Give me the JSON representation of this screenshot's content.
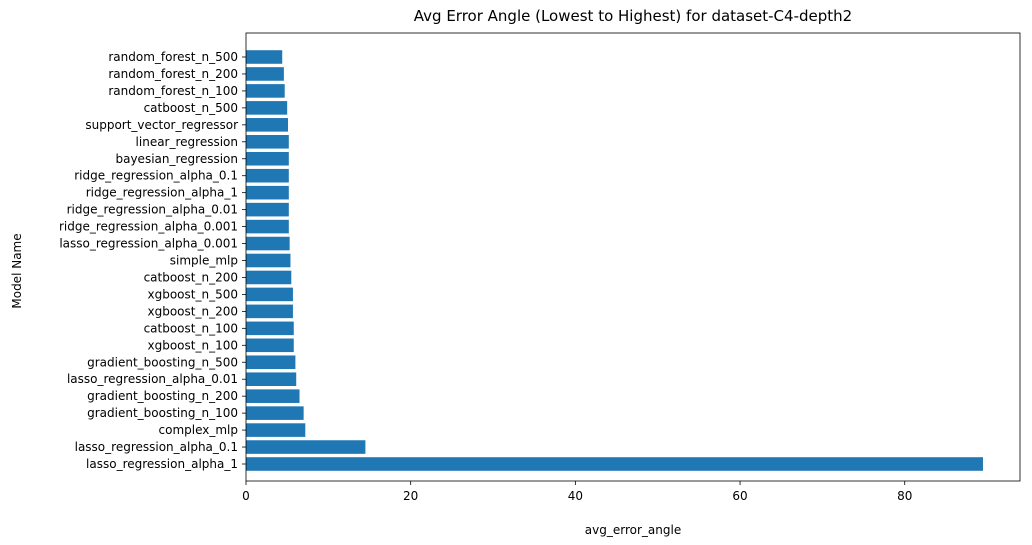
{
  "chart_data": {
    "type": "bar",
    "orientation": "horizontal",
    "title": "Avg Error Angle (Lowest to Highest) for dataset-C4-depth2",
    "xlabel": "avg_error_angle",
    "ylabel": "Model Name",
    "xlim": [
      0,
      94
    ],
    "xticks": [
      0,
      20,
      40,
      60,
      80
    ],
    "grid": false,
    "bar_color": "#1f77b4",
    "categories": [
      "random_forest_n_500",
      "random_forest_n_200",
      "random_forest_n_100",
      "catboost_n_500",
      "support_vector_regressor",
      "linear_regression",
      "bayesian_regression",
      "ridge_regression_alpha_0.1",
      "ridge_regression_alpha_1",
      "ridge_regression_alpha_0.01",
      "ridge_regression_alpha_0.001",
      "lasso_regression_alpha_0.001",
      "simple_mlp",
      "catboost_n_200",
      "xgboost_n_500",
      "xgboost_n_200",
      "catboost_n_100",
      "xgboost_n_100",
      "gradient_boosting_n_500",
      "lasso_regression_alpha_0.01",
      "gradient_boosting_n_200",
      "gradient_boosting_n_100",
      "complex_mlp",
      "lasso_regression_alpha_0.1",
      "lasso_regression_alpha_1"
    ],
    "values": [
      4.4,
      4.6,
      4.7,
      5.0,
      5.1,
      5.2,
      5.2,
      5.2,
      5.2,
      5.2,
      5.2,
      5.3,
      5.4,
      5.5,
      5.7,
      5.7,
      5.8,
      5.8,
      6.0,
      6.1,
      6.5,
      7.0,
      7.2,
      14.5,
      89.5
    ]
  }
}
